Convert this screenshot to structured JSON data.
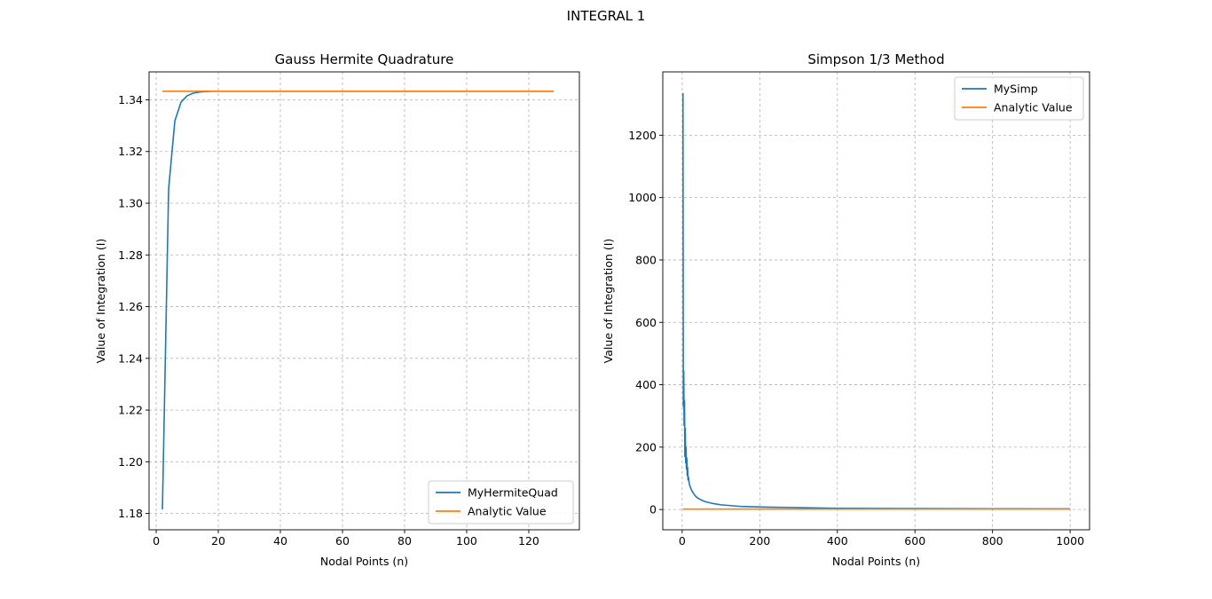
{
  "figure": {
    "suptitle": "INTEGRAL 1"
  },
  "chart_data": [
    {
      "type": "line",
      "title": "Gauss Hermite Quadrature",
      "xlabel": "Nodal Points (n)",
      "ylabel": "Value of Integration (I)",
      "xlim": [
        -2.3,
        136.3
      ],
      "ylim": [
        1.1737,
        1.3508
      ],
      "xticks": [
        0,
        20,
        40,
        60,
        80,
        100,
        120
      ],
      "yticks": [
        1.18,
        1.2,
        1.22,
        1.24,
        1.26,
        1.28,
        1.3,
        1.32,
        1.34
      ],
      "ytick_labels": [
        "1.18",
        "1.20",
        "1.22",
        "1.24",
        "1.26",
        "1.28",
        "1.30",
        "1.32",
        "1.34"
      ],
      "grid": true,
      "legend_position": "lower-right",
      "series": [
        {
          "name": "MyHermiteQuad",
          "color": "#1f77b4",
          "x": [
            2,
            4,
            6,
            8,
            10,
            12,
            14,
            16,
            18,
            20,
            30,
            40,
            60,
            80,
            100,
            128
          ],
          "y": [
            1.1816,
            1.3055,
            1.3318,
            1.3391,
            1.3416,
            1.3426,
            1.343,
            1.3432,
            1.3433,
            1.3433,
            1.3433,
            1.3433,
            1.3433,
            1.3433,
            1.3433,
            1.3433
          ]
        },
        {
          "name": "Analytic Value",
          "color": "#ff7f0e",
          "x": [
            2,
            128
          ],
          "y": [
            1.3433,
            1.3433
          ]
        }
      ]
    },
    {
      "type": "line",
      "title": "Simpson 1/3 Method",
      "xlabel": "Nodal Points (n)",
      "ylabel": "Value of Integration (I)",
      "xlim": [
        -50,
        1050
      ],
      "ylim": [
        -65,
        1403
      ],
      "xticks": [
        0,
        200,
        400,
        600,
        800,
        1000
      ],
      "yticks": [
        0,
        200,
        400,
        600,
        800,
        1000,
        1200
      ],
      "ytick_labels": [
        "0",
        "200",
        "400",
        "600",
        "800",
        "1000",
        "1200"
      ],
      "grid": true,
      "legend_position": "upper-right",
      "series": [
        {
          "name": "MySimp",
          "color": "#1f77b4",
          "x": [
            2,
            3,
            4,
            5,
            6,
            7,
            8,
            9,
            10,
            11,
            12,
            13,
            14,
            15,
            16,
            18,
            20,
            22,
            25,
            30,
            35,
            40,
            50,
            60,
            80,
            100,
            150,
            200,
            300,
            400,
            600,
            800,
            1000
          ],
          "y": [
            1335,
            330,
            445,
            270,
            350,
            170,
            260,
            150,
            200,
            130,
            165,
            110,
            135,
            95,
            105,
            85,
            75,
            68,
            60,
            50,
            42,
            37,
            30,
            25,
            19,
            15,
            10,
            8,
            6,
            4,
            3,
            2.5,
            2
          ]
        },
        {
          "name": "Analytic Value",
          "color": "#ff7f0e",
          "x": [
            2,
            1000
          ],
          "y": [
            1.3433,
            1.3433
          ]
        }
      ]
    }
  ]
}
